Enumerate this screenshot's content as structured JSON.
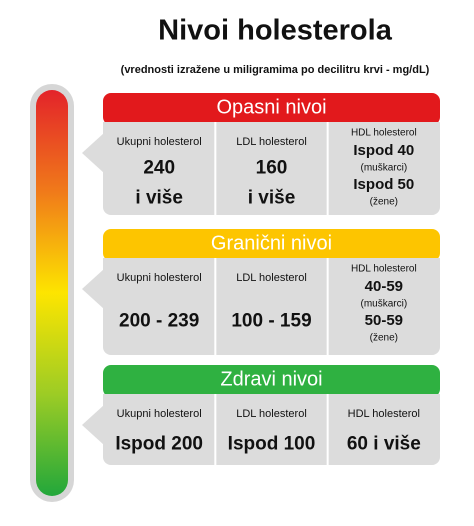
{
  "title": "Nivoi holesterola",
  "subtitle": "(vrednosti izražene u miligramima po decilitru krvi - mg/dL)",
  "sections": [
    {
      "title": "Opasni nivoi",
      "color": "#e2191c",
      "columns": [
        {
          "header": "Ukupni holesterol",
          "lines": [
            "240",
            "i više"
          ]
        },
        {
          "header": "LDL holesterol",
          "lines": [
            "160",
            "i više"
          ]
        },
        {
          "header": "HDL holesterol",
          "lines": [
            "Ispod 40",
            "(muškarci)",
            "Ispod 50",
            "(žene)"
          ]
        }
      ]
    },
    {
      "title": "Granični nivoi",
      "color": "#fdc500",
      "columns": [
        {
          "header": "Ukupni holesterol",
          "lines": [
            "200 - 239"
          ]
        },
        {
          "header": "LDL holesterol",
          "lines": [
            "100 - 159"
          ]
        },
        {
          "header": "HDL holesterol",
          "lines": [
            "40-59",
            "(muškarci)",
            "50-59",
            "(žene)"
          ]
        }
      ]
    },
    {
      "title": "Zdravi nivoi",
      "color": "#2fb141",
      "columns": [
        {
          "header": "Ukupni holesterol",
          "lines": [
            "Ispod 200"
          ]
        },
        {
          "header": "LDL holesterol",
          "lines": [
            "Ispod 100"
          ]
        },
        {
          "header": "HDL holesterol",
          "lines": [
            "60 i više"
          ]
        }
      ]
    }
  ]
}
